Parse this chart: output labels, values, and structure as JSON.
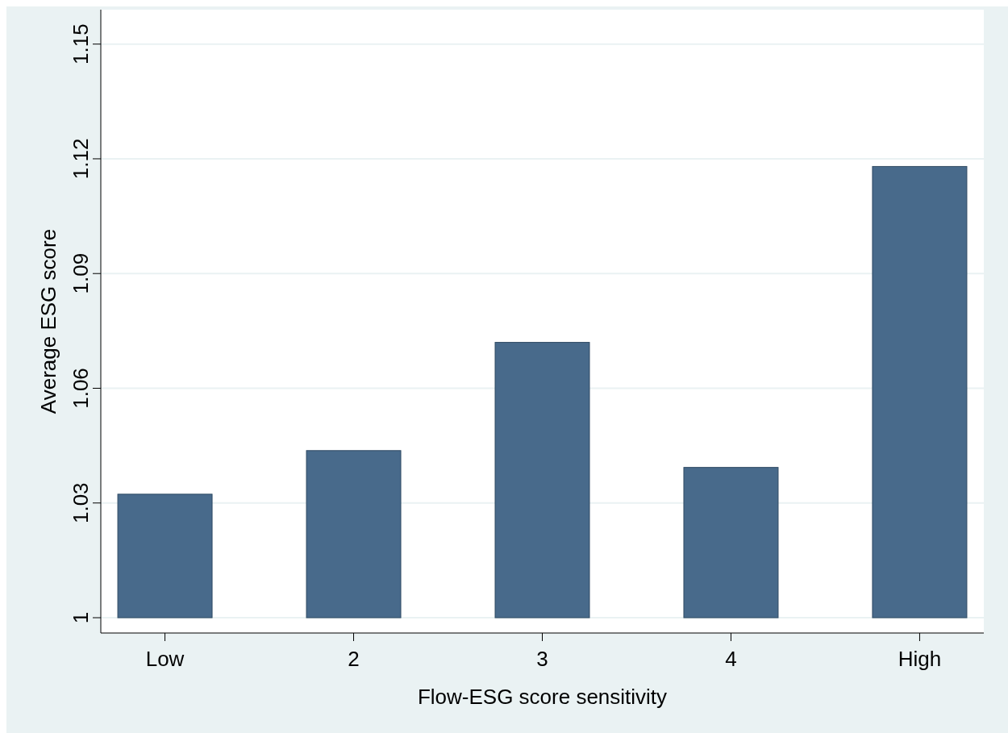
{
  "chart_data": {
    "type": "bar",
    "xlabel": "Flow-ESG score sensitivity",
    "ylabel": "Average ESG score",
    "categories": [
      "Low",
      "2",
      "3",
      "4",
      "High"
    ],
    "base": [
      1,
      1,
      1,
      1,
      1
    ],
    "values": [
      0.0323,
      0.0437,
      0.072,
      0.0393,
      0.118
    ],
    "color": "#486a8b",
    "ylim": [
      0.996,
      1.159
    ],
    "yticks": [
      1,
      1.03,
      1.06,
      1.09,
      1.12,
      1.15
    ],
    "grid": "y"
  }
}
